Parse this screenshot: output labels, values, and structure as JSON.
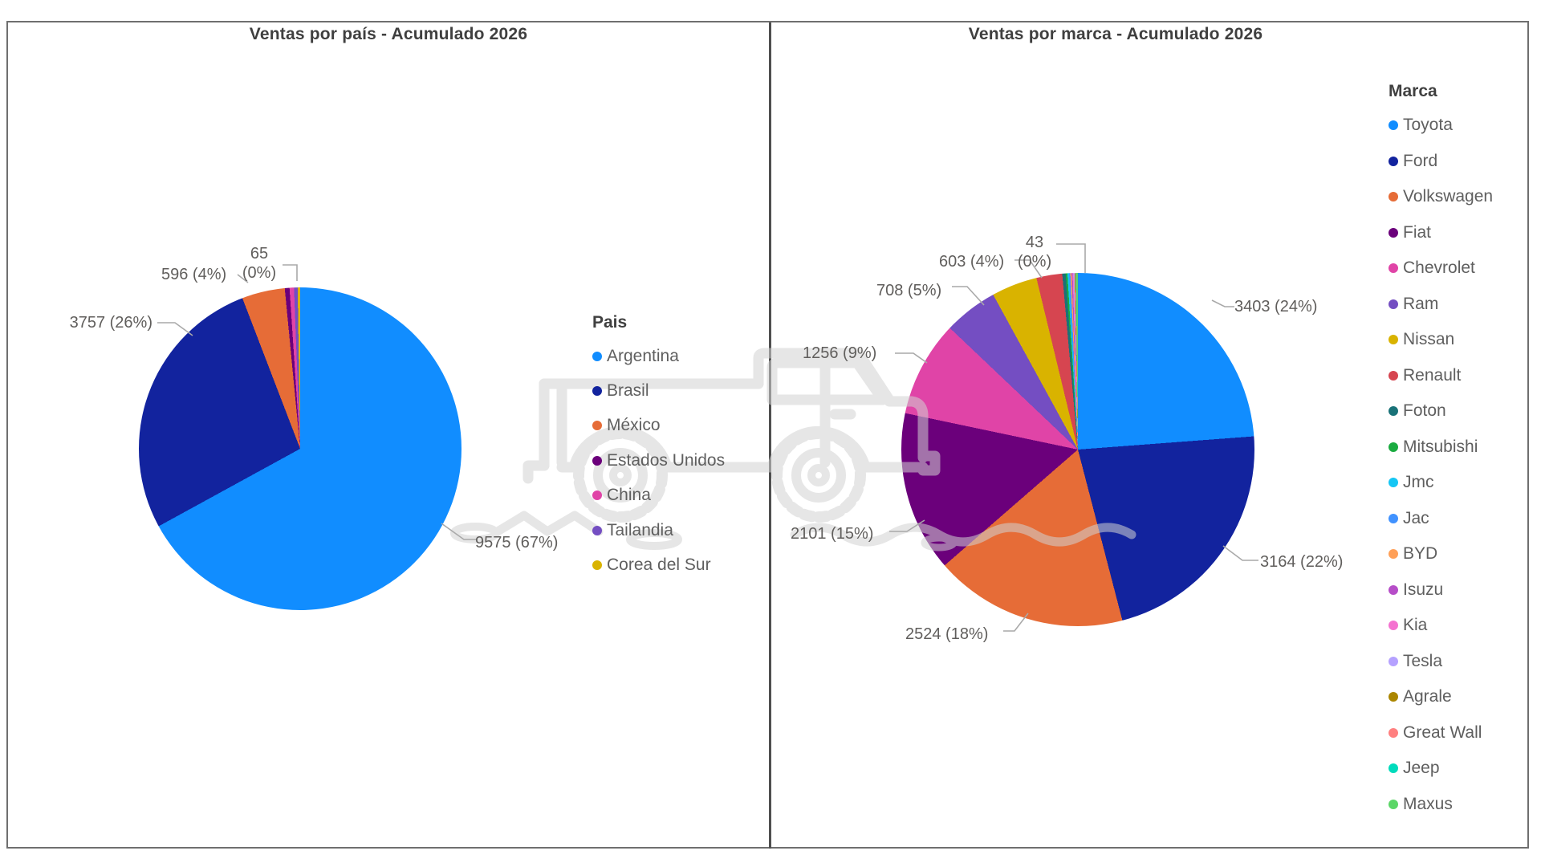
{
  "page": {
    "background": "#FFFFFF",
    "frame_color": "#6F6F6F",
    "divider_color": "#4F4F4F",
    "label_color": "#605E5C",
    "leader_color": "#A9A9A9",
    "watermark": "pickup-truck-line-art",
    "watermark_color": "#D2D2D2"
  },
  "chart_data": [
    {
      "type": "pie",
      "title": "Ventas por país - Acumulado 2026",
      "legend_title": "Pais",
      "legend_position": "right",
      "slices": [
        {
          "name": "Argentina",
          "value": 9575,
          "pct_label": "67%",
          "data_label": "9575 (67%)",
          "color": "#118DFF",
          "arc_deg": 241.3
        },
        {
          "name": "Brasil",
          "value": 3757,
          "pct_label": "26%",
          "data_label": "3757 (26%)",
          "color": "#12239E",
          "arc_deg": 97.7
        },
        {
          "name": "México",
          "value": 596,
          "pct_label": "4%",
          "data_label": "596 (4%)",
          "color": "#E66C37",
          "arc_deg": 15.5
        },
        {
          "name": "Estados Unidos",
          "value": 65,
          "pct_label": "0%",
          "data_label": "65 (0%)",
          "color": "#6B007B",
          "arc_deg": 1.7
        },
        {
          "name": "China",
          "value": null,
          "pct_label": null,
          "data_label": null,
          "color": "#E044A7",
          "arc_deg": 1.6
        },
        {
          "name": "Tailandia",
          "value": null,
          "pct_label": null,
          "data_label": null,
          "color": "#744EC2",
          "arc_deg": 1.3
        },
        {
          "name": "Corea del Sur",
          "value": null,
          "pct_label": null,
          "data_label": null,
          "color": "#D9B300",
          "arc_deg": 0.9
        }
      ]
    },
    {
      "type": "pie",
      "title": "Ventas por marca - Acumulado 2026",
      "legend_title": "Marca",
      "legend_position": "right",
      "slices": [
        {
          "name": "Toyota",
          "value": 3403,
          "pct_label": "24%",
          "data_label": "3403 (24%)",
          "color": "#118DFF",
          "arc_deg": 85.7
        },
        {
          "name": "Ford",
          "value": 3164,
          "pct_label": "22%",
          "data_label": "3164 (22%)",
          "color": "#12239E",
          "arc_deg": 79.7
        },
        {
          "name": "Volkswagen",
          "value": 2524,
          "pct_label": "18%",
          "data_label": "2524 (18%)",
          "color": "#E66C37",
          "arc_deg": 63.6
        },
        {
          "name": "Fiat",
          "value": 2101,
          "pct_label": "15%",
          "data_label": "2101 (15%)",
          "color": "#6B007B",
          "arc_deg": 52.9
        },
        {
          "name": "Chevrolet",
          "value": 1256,
          "pct_label": "9%",
          "data_label": "1256 (9%)",
          "color": "#E044A7",
          "arc_deg": 31.6
        },
        {
          "name": "Ram",
          "value": 708,
          "pct_label": "5%",
          "data_label": "708 (5%)",
          "color": "#744EC2",
          "arc_deg": 17.8
        },
        {
          "name": "Nissan",
          "value": 603,
          "pct_label": "4%",
          "data_label": "603 (4%)",
          "color": "#D9B300",
          "arc_deg": 15.1
        },
        {
          "name": "Renault",
          "value": null,
          "pct_label": null,
          "data_label": null,
          "color": "#D64550",
          "arc_deg": 8.5
        },
        {
          "name": "Foton",
          "value": 43,
          "pct_label": "0%",
          "data_label": "43 (0%)",
          "color": "#197278",
          "arc_deg": 1.1
        },
        {
          "name": "Mitsubishi",
          "value": null,
          "pct_label": null,
          "data_label": null,
          "color": "#1AAB40",
          "arc_deg": 0.6
        },
        {
          "name": "Jmc",
          "value": null,
          "pct_label": null,
          "data_label": null,
          "color": "#15C6F4",
          "arc_deg": 0.5
        },
        {
          "name": "Jac",
          "value": null,
          "pct_label": null,
          "data_label": null,
          "color": "#4092FF",
          "arc_deg": 0.45
        },
        {
          "name": "BYD",
          "value": null,
          "pct_label": null,
          "data_label": null,
          "color": "#FFA058",
          "arc_deg": 0.4
        },
        {
          "name": "Isuzu",
          "value": null,
          "pct_label": null,
          "data_label": null,
          "color": "#B64DC8",
          "arc_deg": 0.35
        },
        {
          "name": "Kia",
          "value": null,
          "pct_label": null,
          "data_label": null,
          "color": "#F472D0",
          "arc_deg": 0.3
        },
        {
          "name": "Tesla",
          "value": null,
          "pct_label": null,
          "data_label": null,
          "color": "#B5A1FF",
          "arc_deg": 0.3
        },
        {
          "name": "Agrale",
          "value": null,
          "pct_label": null,
          "data_label": null,
          "color": "#AB8600",
          "arc_deg": 0.25
        },
        {
          "name": "Great Wall",
          "value": null,
          "pct_label": null,
          "data_label": null,
          "color": "#FF8080",
          "arc_deg": 0.2
        },
        {
          "name": "Jeep",
          "value": null,
          "pct_label": null,
          "data_label": null,
          "color": "#00DBBC",
          "arc_deg": 0.15
        },
        {
          "name": "Maxus",
          "value": null,
          "pct_label": null,
          "data_label": null,
          "color": "#5BD667",
          "arc_deg": 0.5
        }
      ]
    }
  ]
}
